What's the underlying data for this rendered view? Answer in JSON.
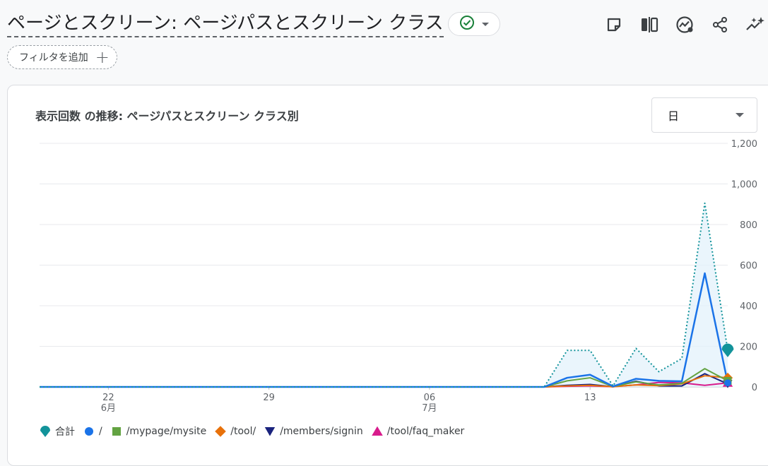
{
  "header": {
    "title": "ページとスクリーン: ページパスとスクリーン クラス",
    "toolbar_icons": [
      "note-icon",
      "compare-icon",
      "insights-trend-icon",
      "share-icon",
      "sparkle-insights-icon"
    ]
  },
  "filter": {
    "label": "フィルタを追加",
    "icon": "plus-icon"
  },
  "card": {
    "title": "表示回数 の推移: ページパスとスクリーン クラス別",
    "period": {
      "selected": "日"
    }
  },
  "chart_data": {
    "type": "line",
    "title": "表示回数 の推移: ページパスとスクリーン クラス別",
    "x": [
      "2024-06-19",
      "2024-06-20",
      "2024-06-21",
      "2024-06-22",
      "2024-06-23",
      "2024-06-24",
      "2024-06-25",
      "2024-06-26",
      "2024-06-27",
      "2024-06-28",
      "2024-06-29",
      "2024-06-30",
      "2024-07-01",
      "2024-07-02",
      "2024-07-03",
      "2024-07-04",
      "2024-07-05",
      "2024-07-06",
      "2024-07-07",
      "2024-07-08",
      "2024-07-09",
      "2024-07-10",
      "2024-07-11",
      "2024-07-12",
      "2024-07-13",
      "2024-07-14",
      "2024-07-15",
      "2024-07-16",
      "2024-07-17",
      "2024-07-18",
      "2024-07-19"
    ],
    "x_tick_labels": [
      {
        "at": "2024-06-22",
        "line1": "22",
        "line2": "6月"
      },
      {
        "at": "2024-06-29",
        "line1": "29",
        "line2": ""
      },
      {
        "at": "2024-07-06",
        "line1": "06",
        "line2": "7月"
      },
      {
        "at": "2024-07-13",
        "line1": "13",
        "line2": ""
      }
    ],
    "y_ticks": [
      "0",
      "200",
      "400",
      "600",
      "800",
      "1,000",
      "1,200"
    ],
    "ylim": [
      0,
      1200
    ],
    "grid": true,
    "legend_position": "bottom",
    "series": [
      {
        "name": "合計",
        "color": "#12939a",
        "style": "dotted-area",
        "marker": "pin",
        "values": [
          0,
          0,
          0,
          0,
          0,
          0,
          0,
          0,
          0,
          0,
          0,
          0,
          0,
          0,
          0,
          0,
          0,
          0,
          0,
          0,
          0,
          0,
          0,
          180,
          180,
          5,
          190,
          75,
          140,
          905,
          180
        ]
      },
      {
        "name": "/",
        "color": "#1a73e8",
        "style": "line",
        "marker": "circle",
        "values": [
          0,
          0,
          0,
          0,
          0,
          0,
          0,
          0,
          0,
          0,
          0,
          0,
          0,
          0,
          0,
          0,
          0,
          0,
          0,
          0,
          0,
          0,
          0,
          45,
          60,
          3,
          40,
          30,
          28,
          560,
          20
        ]
      },
      {
        "name": "/mypage/mysite",
        "color": "#63a342",
        "style": "line",
        "marker": "square",
        "values": [
          0,
          0,
          0,
          0,
          0,
          0,
          0,
          0,
          0,
          0,
          0,
          0,
          0,
          0,
          0,
          0,
          0,
          0,
          0,
          0,
          0,
          0,
          0,
          30,
          45,
          2,
          25,
          10,
          18,
          90,
          30
        ]
      },
      {
        "name": "/tool/",
        "color": "#e8710a",
        "style": "line",
        "marker": "diamond",
        "values": [
          0,
          0,
          0,
          0,
          0,
          0,
          0,
          0,
          0,
          0,
          0,
          0,
          0,
          0,
          0,
          0,
          0,
          0,
          0,
          0,
          0,
          0,
          0,
          5,
          8,
          1,
          10,
          6,
          15,
          55,
          45
        ]
      },
      {
        "name": "/members/signin",
        "color": "#1a237e",
        "style": "line",
        "marker": "down-triangle",
        "values": [
          0,
          0,
          0,
          0,
          0,
          0,
          0,
          0,
          0,
          0,
          0,
          0,
          0,
          0,
          0,
          0,
          0,
          0,
          0,
          0,
          0,
          0,
          0,
          8,
          12,
          1,
          28,
          5,
          5,
          65,
          15
        ]
      },
      {
        "name": "/tool/faq_maker",
        "color": "#d81b8c",
        "style": "line",
        "marker": "up-triangle",
        "values": [
          0,
          0,
          0,
          0,
          0,
          0,
          0,
          0,
          0,
          0,
          0,
          0,
          0,
          0,
          0,
          0,
          0,
          0,
          0,
          0,
          0,
          0,
          0,
          3,
          5,
          1,
          10,
          22,
          20,
          8,
          20
        ]
      }
    ]
  }
}
